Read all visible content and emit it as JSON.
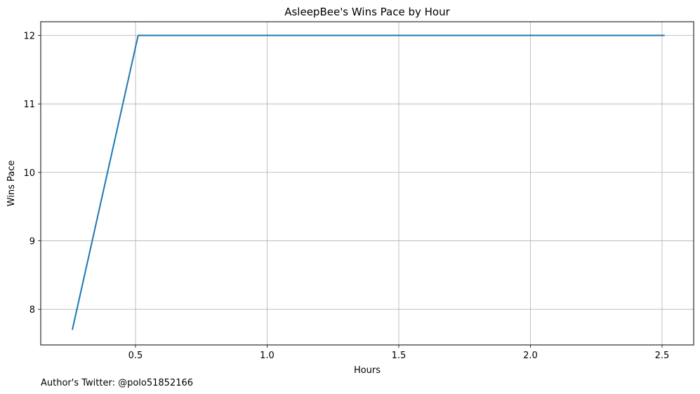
{
  "chart_data": {
    "type": "line",
    "title": "AsleepBee's Wins Pace by Hour",
    "xlabel": "Hours",
    "ylabel": "Wins Pace",
    "xlim": [
      0.14,
      2.62
    ],
    "ylim": [
      7.48,
      12.2
    ],
    "x_ticks": [
      0.5,
      1.0,
      1.5,
      2.0,
      2.5
    ],
    "x_tick_labels": [
      "0.5",
      "1.0",
      "1.5",
      "2.0",
      "2.5"
    ],
    "y_ticks": [
      8,
      9,
      10,
      11,
      12
    ],
    "y_tick_labels": [
      "8",
      "9",
      "10",
      "11",
      "12"
    ],
    "grid": true,
    "series": [
      {
        "color": "#1f77b4",
        "x": [
          0.26,
          0.51,
          0.76,
          1.01,
          1.26,
          1.51,
          1.76,
          2.01,
          2.26,
          2.51
        ],
        "y": [
          7.7,
          12,
          12,
          12,
          12,
          12,
          12,
          12,
          12,
          12
        ]
      }
    ]
  },
  "footnote": "Author's Twitter: @polo51852166"
}
